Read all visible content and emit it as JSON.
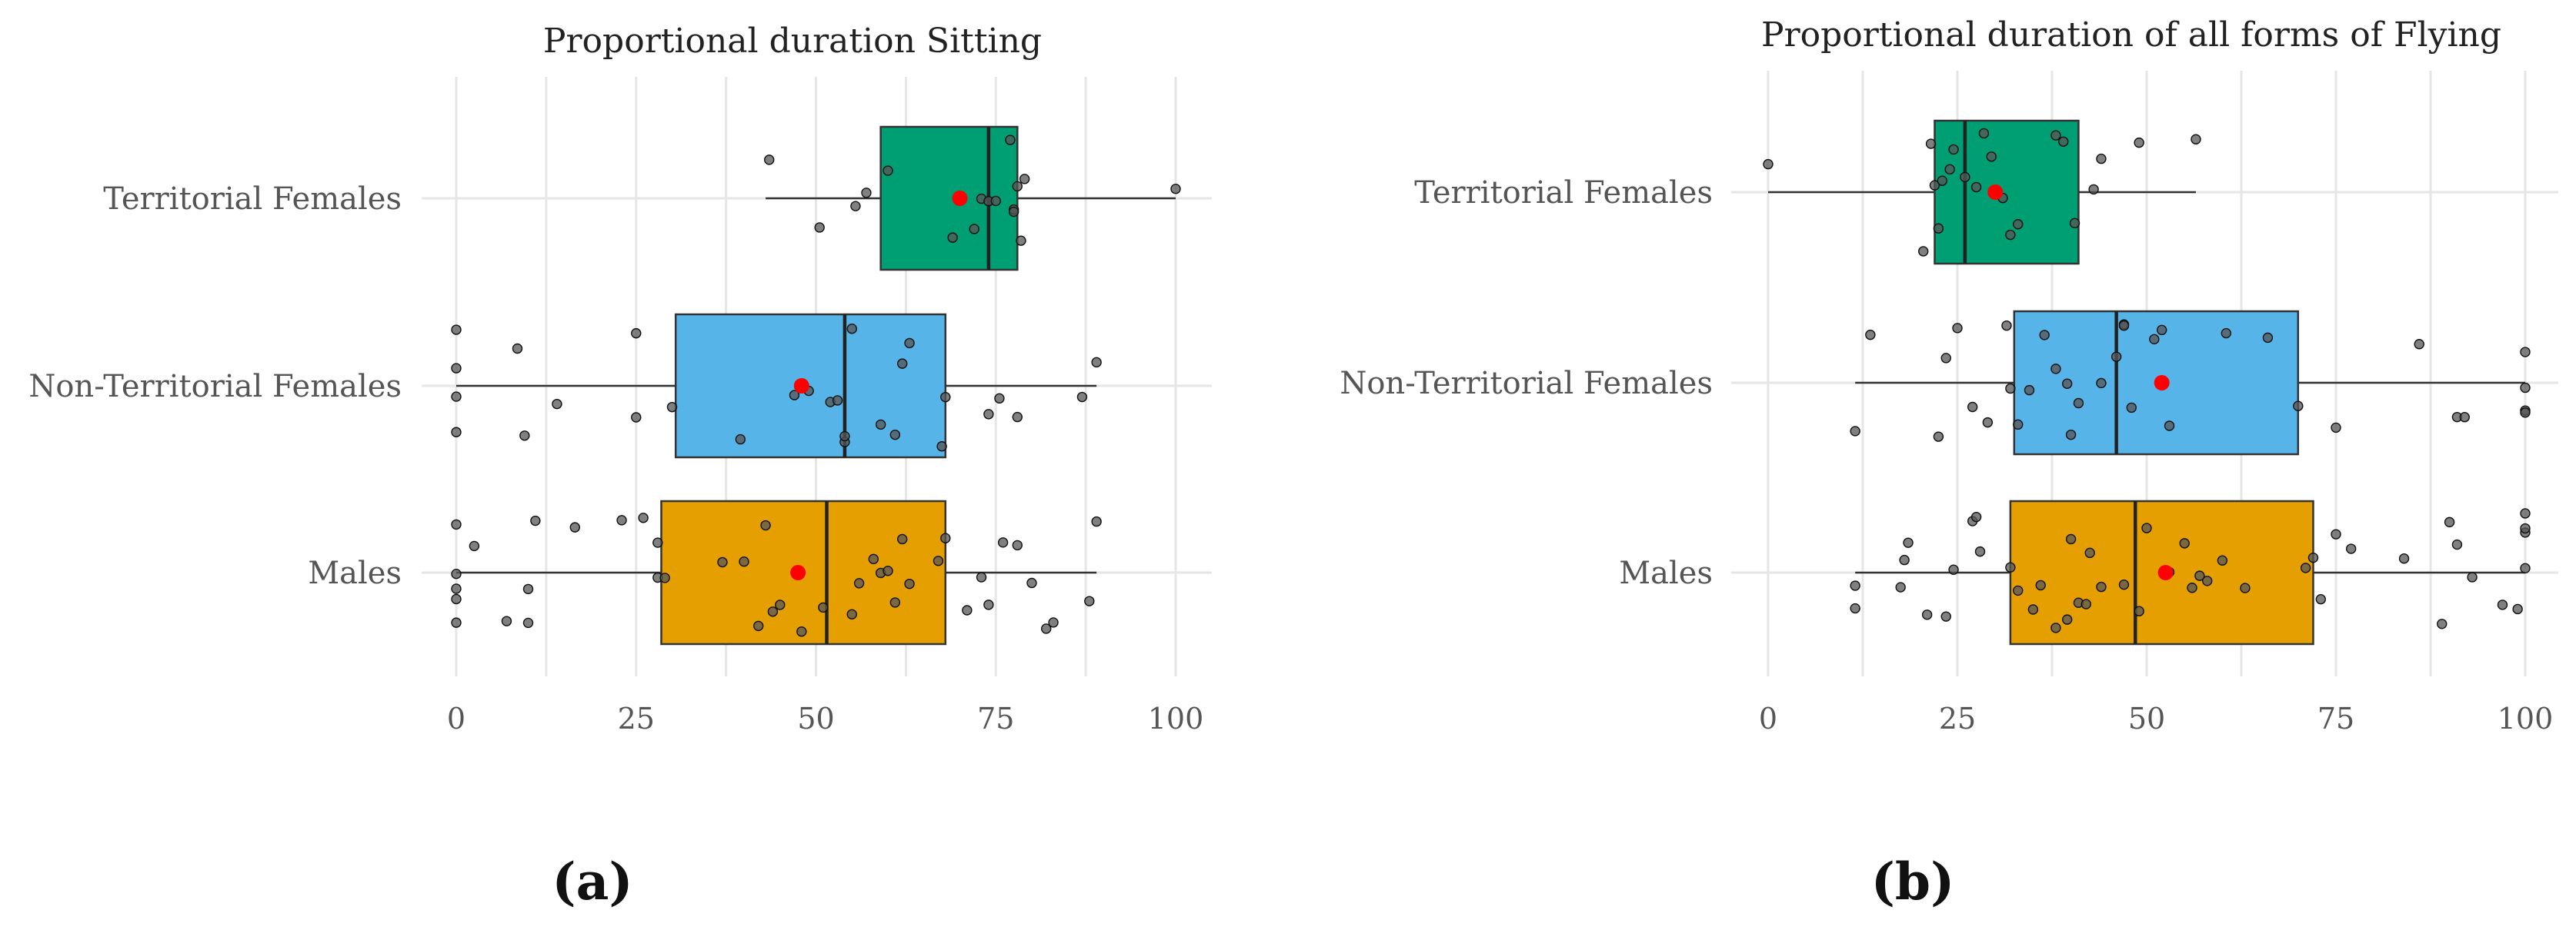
{
  "chart_data": [
    {
      "type": "boxplot",
      "panel_label": "(a)",
      "title": "Proportional duration Sitting",
      "xlabel": "",
      "ylabel": "",
      "xlim": [
        0,
        100
      ],
      "x_ticks": [
        "0",
        "25",
        "50",
        "75",
        "100"
      ],
      "grid": true,
      "categories": [
        "Territorial Females",
        "Non-Territorial Females",
        "Males"
      ],
      "series": [
        {
          "name": "Territorial Females",
          "color": "#009E73",
          "whisker_low": 43,
          "q1": 59,
          "median": 74,
          "q3": 78,
          "whisker_high": 100,
          "mean": 70,
          "points": [
            43.5,
            50.5,
            55.5,
            57,
            60,
            69,
            72,
            73,
            74,
            75,
            77,
            77.5,
            77.5,
            78,
            78.5,
            79,
            100
          ]
        },
        {
          "name": "Non-Territorial Females",
          "color": "#56B4E9",
          "whisker_low": 0,
          "q1": 30.5,
          "median": 54,
          "q3": 68,
          "whisker_high": 89,
          "mean": 48,
          "points": [
            0,
            0,
            0,
            0,
            8.5,
            9.5,
            14,
            25,
            25,
            30,
            39.5,
            47,
            49,
            52,
            53,
            54,
            54,
            55,
            59,
            61,
            62,
            63,
            67.5,
            68,
            74,
            75.5,
            78,
            87,
            89
          ]
        },
        {
          "name": "Males",
          "color": "#E69F00",
          "whisker_low": 0,
          "q1": 28.5,
          "median": 51.5,
          "q3": 68,
          "whisker_high": 89,
          "mean": 47.5,
          "points": [
            0,
            0,
            0,
            0,
            0,
            2.5,
            7,
            10,
            10,
            11,
            16.5,
            23,
            26,
            28,
            28,
            29,
            37,
            40,
            42,
            43,
            44,
            45,
            48,
            51,
            55,
            56,
            58,
            59,
            60,
            61,
            62,
            63,
            67,
            68,
            71,
            73,
            74,
            76,
            78,
            80,
            82,
            83,
            88,
            89
          ]
        }
      ]
    },
    {
      "type": "boxplot",
      "panel_label": "(b)",
      "title": "Proportional duration of all forms of Flying",
      "xlabel": "",
      "ylabel": "",
      "xlim": [
        0,
        100
      ],
      "x_ticks": [
        "0",
        "25",
        "50",
        "75",
        "100"
      ],
      "grid": true,
      "categories": [
        "Territorial Females",
        "Non-Territorial Females",
        "Males"
      ],
      "series": [
        {
          "name": "Territorial Females",
          "color": "#009E73",
          "whisker_low": 0,
          "q1": 22,
          "median": 26,
          "q3": 41,
          "whisker_high": 56.5,
          "mean": 30,
          "points": [
            0,
            20.5,
            21.5,
            22,
            22.5,
            23,
            24,
            24.5,
            26,
            27.5,
            28.5,
            29.5,
            31,
            32,
            33,
            38,
            39,
            40.5,
            43,
            44,
            49,
            56.5
          ]
        },
        {
          "name": "Non-Territorial Females",
          "color": "#56B4E9",
          "whisker_low": 11.5,
          "q1": 32.5,
          "median": 46,
          "q3": 70,
          "whisker_high": 100,
          "mean": 52,
          "points": [
            11.5,
            13.5,
            22.5,
            23.5,
            25,
            27,
            29,
            31.5,
            32,
            33,
            34.5,
            36.5,
            38,
            39.5,
            40,
            41,
            44,
            46,
            47,
            47,
            48,
            51,
            52,
            53,
            60.5,
            66,
            70,
            75,
            86,
            91,
            92,
            100,
            100,
            100,
            100
          ]
        },
        {
          "name": "Males",
          "color": "#E69F00",
          "whisker_low": 11.5,
          "q1": 32,
          "median": 48.5,
          "q3": 72,
          "whisker_high": 100,
          "mean": 52.5,
          "points": [
            11.5,
            11.5,
            17.5,
            18,
            18.5,
            21,
            23.5,
            24.5,
            27,
            27.5,
            28,
            32,
            33,
            35,
            36,
            38,
            39.5,
            40,
            41,
            42,
            42.5,
            44,
            47,
            49,
            50,
            53,
            55,
            56,
            57,
            58,
            60,
            63,
            71,
            72,
            73,
            75,
            77,
            84,
            89,
            90,
            91,
            93,
            97,
            99,
            100,
            100,
            100,
            100
          ]
        }
      ]
    }
  ]
}
